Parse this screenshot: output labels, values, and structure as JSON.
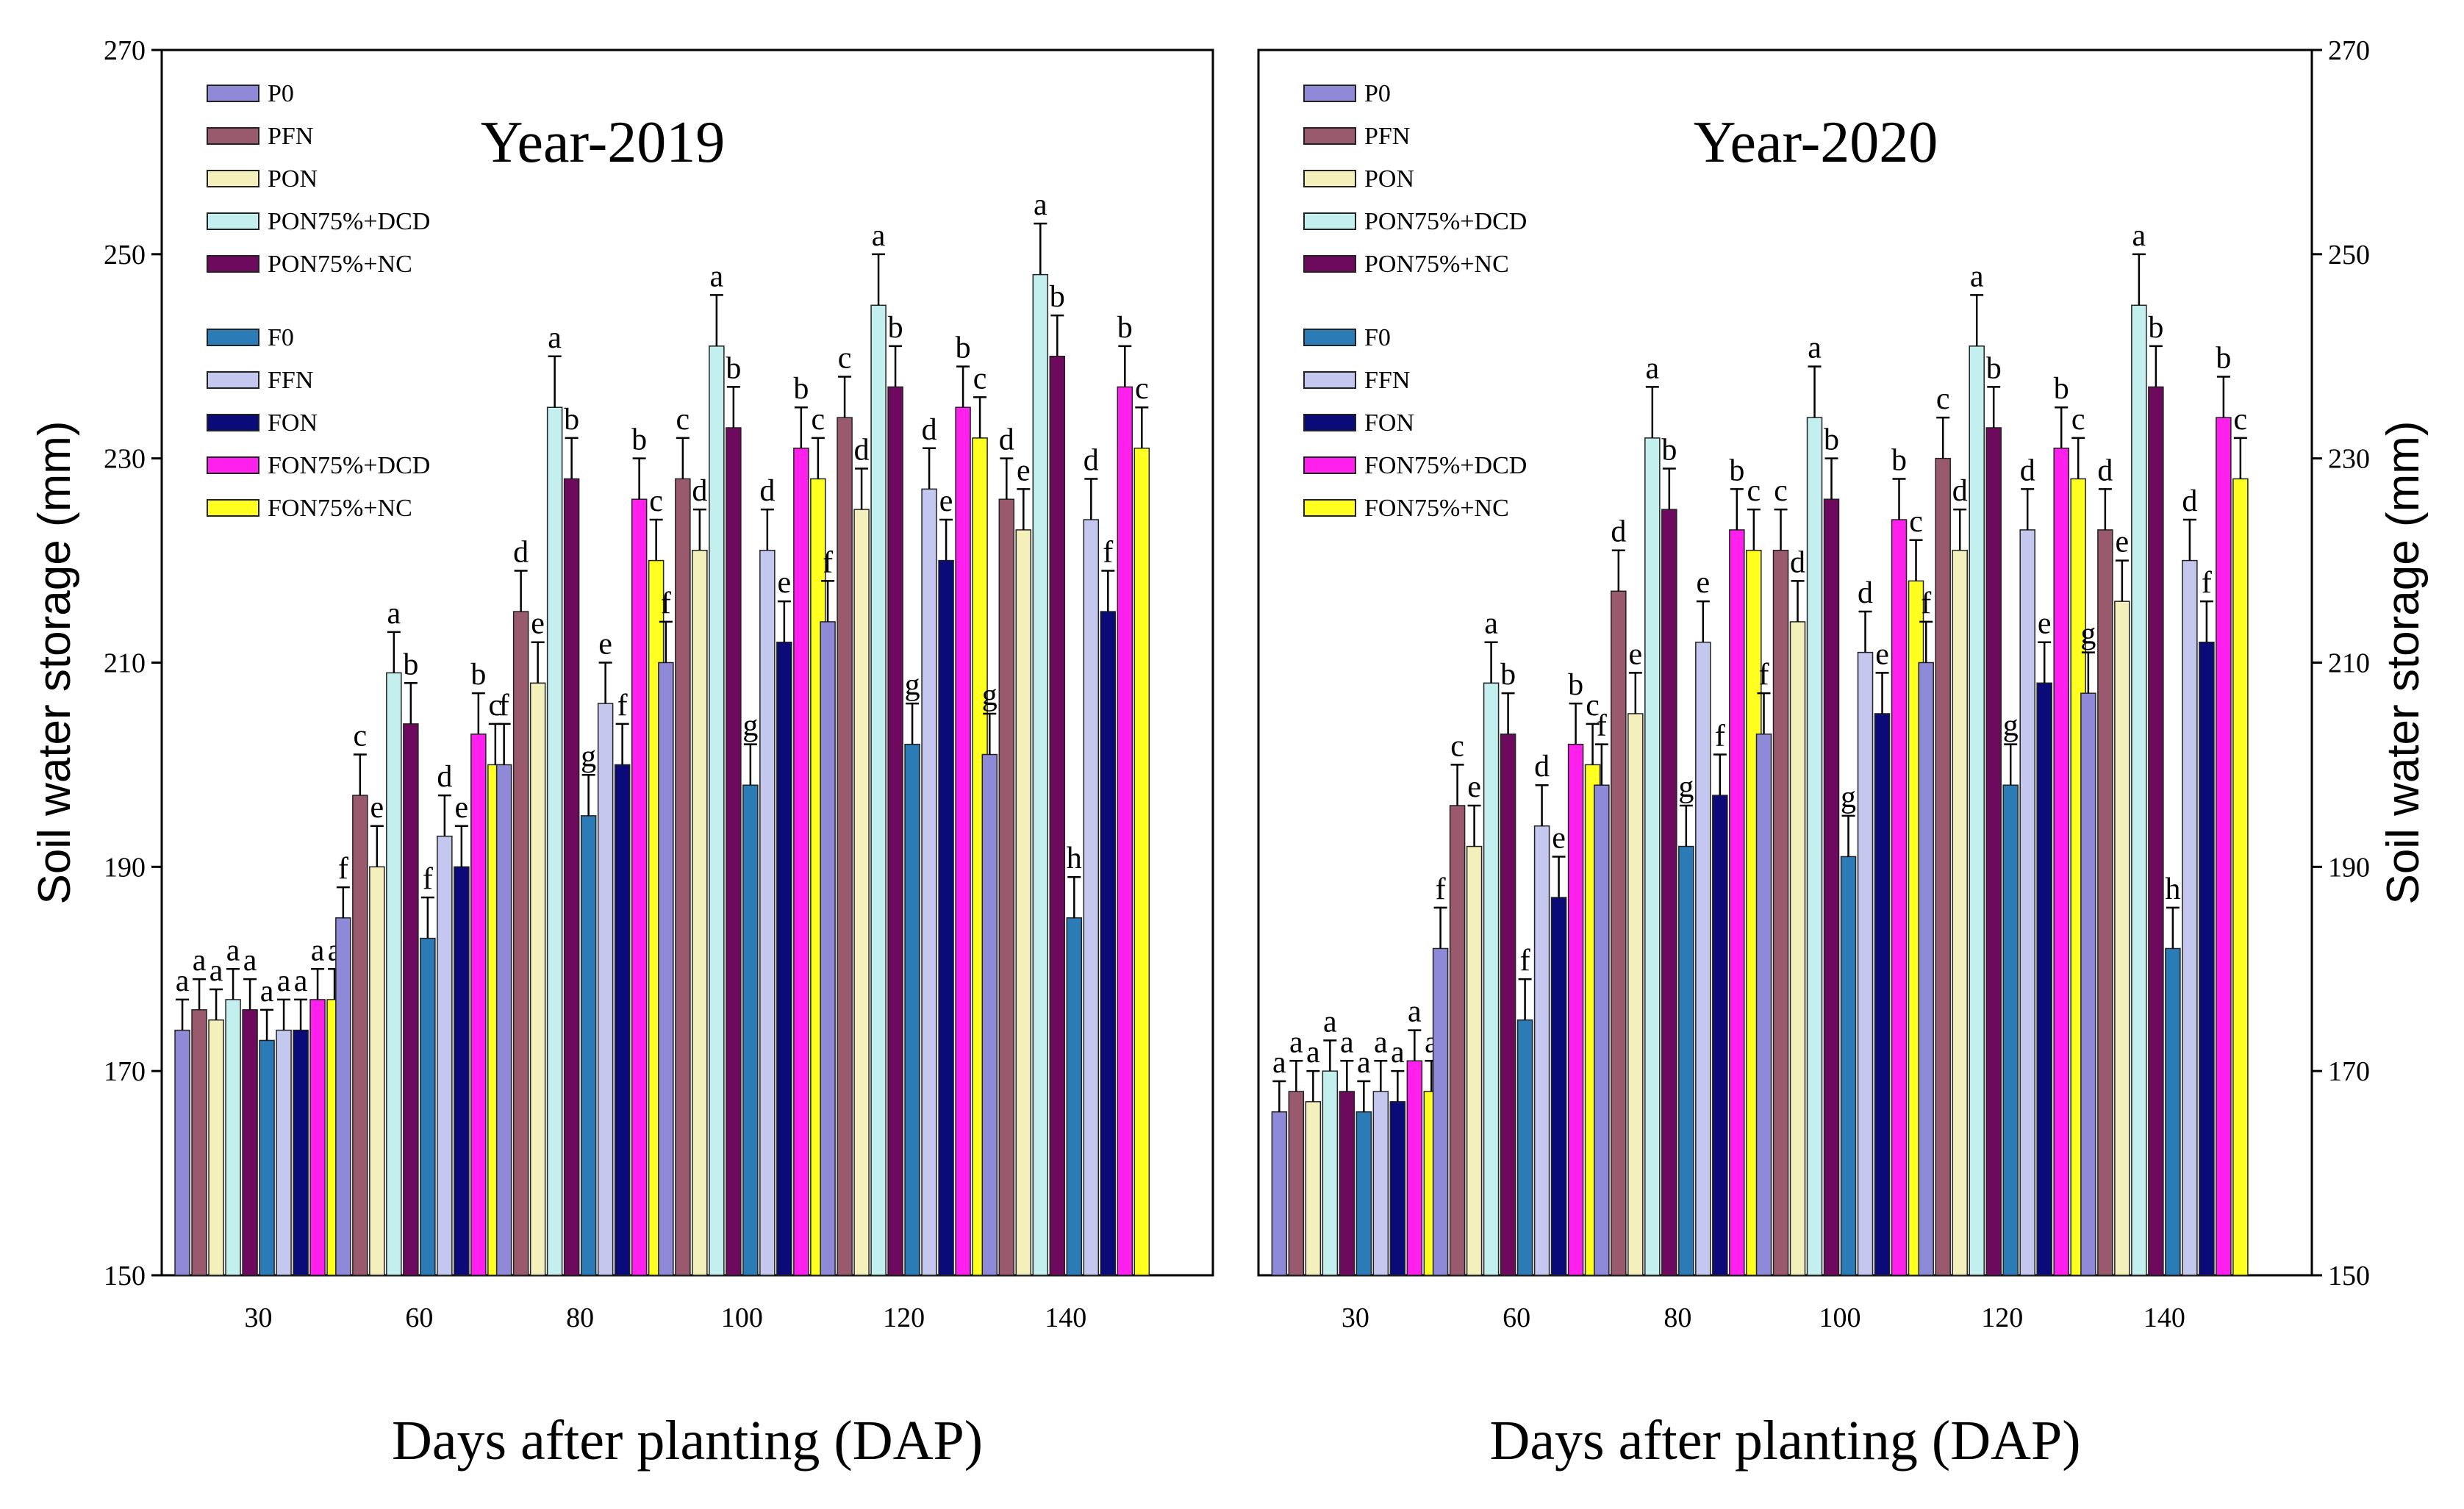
{
  "chart_data": [
    {
      "type": "bar",
      "title": "Year-2019",
      "xlabel": "Days after planting (DAP)",
      "ylabel": "Soil water storage (mm)",
      "ylim": [
        150,
        270
      ],
      "yticks": [
        "150",
        "170",
        "190",
        "210",
        "230",
        "250",
        "270"
      ],
      "categories": [
        "30",
        "60",
        "80",
        "100",
        "120",
        "140"
      ],
      "legend_groups": [
        [
          "P0",
          "PFN",
          "PON",
          "PON75%+DCD",
          "PON75%+NC"
        ],
        [
          "F0",
          "FFN",
          "FON",
          "FON75%+DCD",
          "FON75%+NC"
        ]
      ],
      "series": [
        {
          "name": "P0",
          "color": "#8f8ad8",
          "values": [
            174,
            185,
            200,
            210,
            214,
            201
          ],
          "errors": [
            3,
            3,
            4,
            4,
            4,
            4
          ],
          "letters": [
            "a",
            "f",
            "f",
            "f",
            "f",
            "g"
          ]
        },
        {
          "name": "PFN",
          "color": "#9a5a6e",
          "values": [
            176,
            197,
            215,
            228,
            234,
            226
          ],
          "errors": [
            3,
            4,
            4,
            4,
            4,
            4
          ],
          "letters": [
            "a",
            "c",
            "d",
            "c",
            "c",
            "d"
          ]
        },
        {
          "name": "PON",
          "color": "#f4f0bc",
          "values": [
            175,
            190,
            208,
            221,
            225,
            223
          ],
          "errors": [
            3,
            4,
            4,
            4,
            4,
            4
          ],
          "letters": [
            "a",
            "e",
            "e",
            "d",
            "d",
            "e"
          ]
        },
        {
          "name": "PON75%+DCD",
          "color": "#c4efef",
          "values": [
            177,
            209,
            235,
            241,
            245,
            248
          ],
          "errors": [
            3,
            4,
            5,
            5,
            5,
            5
          ],
          "letters": [
            "a",
            "a",
            "a",
            "a",
            "a",
            "a"
          ]
        },
        {
          "name": "PON75%+NC",
          "color": "#6e0a5e",
          "values": [
            176,
            204,
            228,
            233,
            237,
            240
          ],
          "errors": [
            3,
            4,
            4,
            4,
            4,
            4
          ],
          "letters": [
            "a",
            "b",
            "b",
            "b",
            "b",
            "b"
          ]
        },
        {
          "name": "F0",
          "color": "#2b7bb6",
          "values": [
            173,
            183,
            195,
            198,
            202,
            185
          ],
          "errors": [
            3,
            4,
            4,
            4,
            4,
            4
          ],
          "letters": [
            "a",
            "f",
            "g",
            "g",
            "g",
            "h"
          ]
        },
        {
          "name": "FFN",
          "color": "#c4c8ef",
          "values": [
            174,
            193,
            206,
            221,
            227,
            224
          ],
          "errors": [
            3,
            4,
            4,
            4,
            4,
            4
          ],
          "letters": [
            "a",
            "d",
            "e",
            "d",
            "d",
            "d"
          ]
        },
        {
          "name": "FON",
          "color": "#0a0a78",
          "values": [
            174,
            190,
            200,
            212,
            220,
            215
          ],
          "errors": [
            3,
            4,
            4,
            4,
            4,
            4
          ],
          "letters": [
            "a",
            "e",
            "f",
            "e",
            "e",
            "f"
          ]
        },
        {
          "name": "FON75%+DCD",
          "color": "#ff20ee",
          "values": [
            177,
            203,
            226,
            231,
            235,
            237
          ],
          "errors": [
            3,
            4,
            4,
            4,
            4,
            4
          ],
          "letters": [
            "a",
            "b",
            "b",
            "b",
            "b",
            "b"
          ]
        },
        {
          "name": "FON75%+NC",
          "color": "#ffff20",
          "values": [
            177,
            200,
            220,
            228,
            232,
            231
          ],
          "errors": [
            3,
            4,
            4,
            4,
            4,
            4
          ],
          "letters": [
            "a",
            "c",
            "c",
            "c",
            "c",
            "c"
          ]
        }
      ]
    },
    {
      "type": "bar",
      "title": "Year-2020",
      "xlabel": "Days after planting (DAP)",
      "ylabel": "Soil water storage (mm)",
      "ylim": [
        150,
        270
      ],
      "yticks": [
        "150",
        "170",
        "190",
        "210",
        "230",
        "250",
        "270"
      ],
      "categories": [
        "30",
        "60",
        "80",
        "100",
        "120",
        "140"
      ],
      "legend_groups": [
        [
          "P0",
          "PFN",
          "PON",
          "PON75%+DCD",
          "PON75%+NC"
        ],
        [
          "F0",
          "FFN",
          "FON",
          "FON75%+DCD",
          "FON75%+NC"
        ]
      ],
      "series": [
        {
          "name": "P0",
          "color": "#8f8ad8",
          "values": [
            166,
            182,
            198,
            203,
            210,
            207
          ],
          "errors": [
            3,
            4,
            4,
            4,
            4,
            4
          ],
          "letters": [
            "a",
            "f",
            "f",
            "f",
            "f",
            "g"
          ]
        },
        {
          "name": "PFN",
          "color": "#9a5a6e",
          "values": [
            168,
            196,
            217,
            221,
            230,
            223
          ],
          "errors": [
            3,
            4,
            4,
            4,
            4,
            4
          ],
          "letters": [
            "a",
            "c",
            "d",
            "c",
            "c",
            "d"
          ]
        },
        {
          "name": "PON",
          "color": "#f4f0bc",
          "values": [
            167,
            192,
            205,
            214,
            221,
            216
          ],
          "errors": [
            3,
            4,
            4,
            4,
            4,
            4
          ],
          "letters": [
            "a",
            "e",
            "e",
            "d",
            "d",
            "e"
          ]
        },
        {
          "name": "PON75%+DCD",
          "color": "#c4efef",
          "values": [
            170,
            208,
            232,
            234,
            241,
            245
          ],
          "errors": [
            3,
            4,
            5,
            5,
            5,
            5
          ],
          "letters": [
            "a",
            "a",
            "a",
            "a",
            "a",
            "a"
          ]
        },
        {
          "name": "PON75%+NC",
          "color": "#6e0a5e",
          "values": [
            168,
            203,
            225,
            226,
            233,
            237
          ],
          "errors": [
            3,
            4,
            4,
            4,
            4,
            4
          ],
          "letters": [
            "a",
            "b",
            "b",
            "b",
            "b",
            "b"
          ]
        },
        {
          "name": "F0",
          "color": "#2b7bb6",
          "values": [
            166,
            175,
            192,
            191,
            198,
            182
          ],
          "errors": [
            3,
            4,
            4,
            4,
            4,
            4
          ],
          "letters": [
            "a",
            "f",
            "g",
            "g",
            "g",
            "h"
          ]
        },
        {
          "name": "FFN",
          "color": "#c4c8ef",
          "values": [
            168,
            194,
            212,
            211,
            223,
            220
          ],
          "errors": [
            3,
            4,
            4,
            4,
            4,
            4
          ],
          "letters": [
            "a",
            "d",
            "e",
            "d",
            "d",
            "d"
          ]
        },
        {
          "name": "FON",
          "color": "#0a0a78",
          "values": [
            167,
            187,
            197,
            205,
            208,
            212
          ],
          "errors": [
            3,
            4,
            4,
            4,
            4,
            4
          ],
          "letters": [
            "a",
            "e",
            "f",
            "e",
            "e",
            "f"
          ]
        },
        {
          "name": "FON75%+DCD",
          "color": "#ff20ee",
          "values": [
            171,
            202,
            223,
            224,
            231,
            234
          ],
          "errors": [
            3,
            4,
            4,
            4,
            4,
            4
          ],
          "letters": [
            "a",
            "b",
            "b",
            "b",
            "b",
            "b"
          ]
        },
        {
          "name": "FON75%+NC",
          "color": "#ffff20",
          "values": [
            168,
            200,
            221,
            218,
            228,
            228
          ],
          "errors": [
            3,
            4,
            4,
            4,
            4,
            4
          ],
          "letters": [
            "a",
            "c",
            "c",
            "c",
            "c",
            "c"
          ]
        }
      ]
    }
  ]
}
